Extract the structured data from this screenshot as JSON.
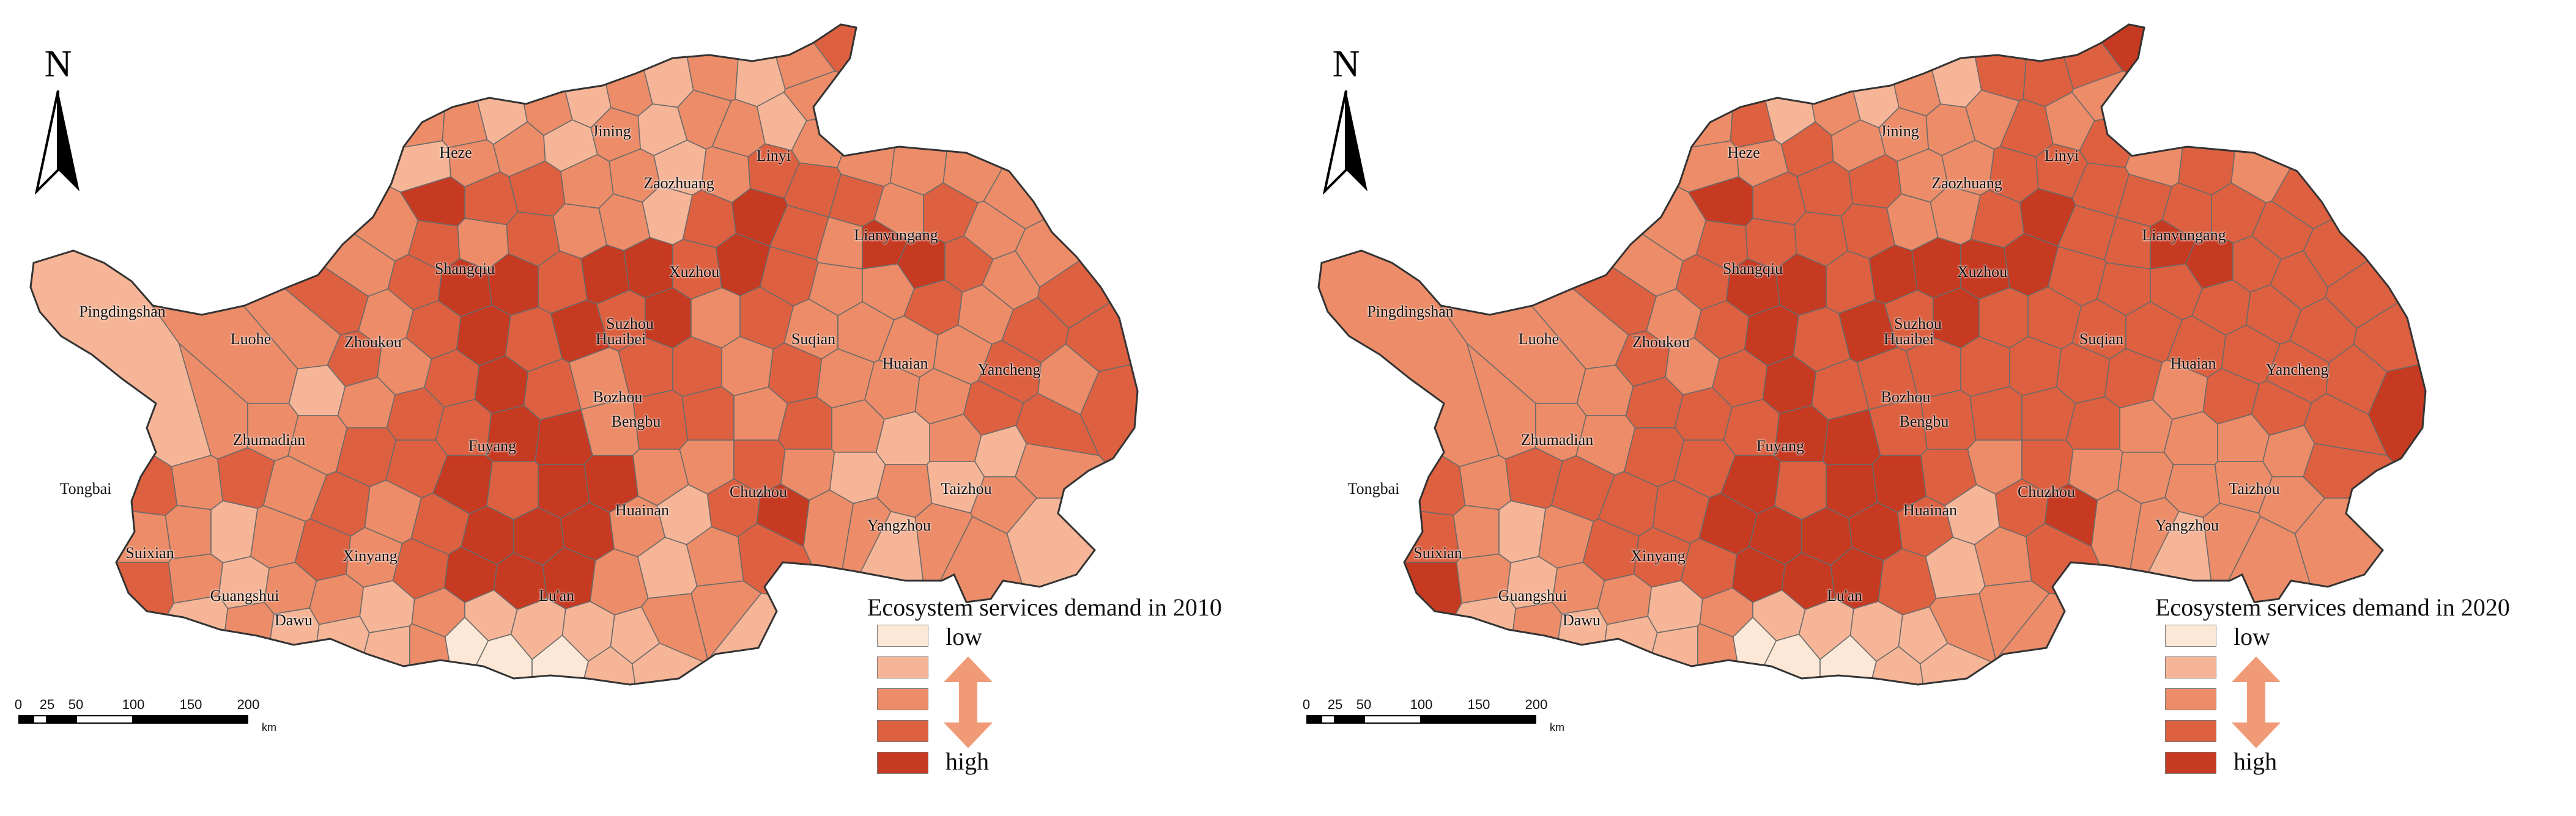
{
  "palette": [
    "#fde8d7",
    "#f6b597",
    "#ec8c68",
    "#dd6040",
    "#c63a22"
  ],
  "panels": [
    {
      "id": "2010",
      "north_label": "N",
      "legend": {
        "title": "Ecosystem services demand in 2010",
        "low": "low",
        "high": "high"
      },
      "scale": {
        "ticks": [
          "0",
          "25",
          "50",
          "100",
          "150",
          "200"
        ],
        "unit": "km"
      },
      "cities": [
        "Heze",
        "Jining",
        "Zaozhuang",
        "Linyi",
        "Lianyungang",
        "Xuzhou",
        "Shangqiu",
        "Pingdingshan",
        "Luohe",
        "Zhoukou",
        "Huaibei",
        "Suzhou",
        "Suqian",
        "Huaian",
        "Yancheng",
        "Bozhou",
        "Bengbu",
        "Zhumadian",
        "Fuyang",
        "Tongbai",
        "Yangzhou",
        "Taizhou",
        "Chuzhou",
        "Huainan",
        "Suixian",
        "Xinyang",
        "Guangshui",
        "Dawu",
        "Lu'an"
      ]
    },
    {
      "id": "2020",
      "north_label": "N",
      "legend": {
        "title": "Ecosystem services demand in 2020",
        "low": "low",
        "high": "high"
      },
      "scale": {
        "ticks": [
          "0",
          "25",
          "50",
          "100",
          "150",
          "200"
        ],
        "unit": "km"
      },
      "cities": [
        "Heze",
        "Jining",
        "Zaozhuang",
        "Linyi",
        "Lianyungang",
        "Xuzhou",
        "Shangqiu",
        "Pingdingshan",
        "Luohe",
        "Zhoukou",
        "Huaibei",
        "Suzhou",
        "Suqian",
        "Huaian",
        "Yancheng",
        "Bozhou",
        "Bengbu",
        "Zhumadian",
        "Fuyang",
        "Tongbai",
        "Yangzhou",
        "Taizhou",
        "Chuzhou",
        "Huainan",
        "Suixian",
        "Xinyang",
        "Guangshui",
        "Dawu",
        "Lu'an"
      ]
    }
  ]
}
